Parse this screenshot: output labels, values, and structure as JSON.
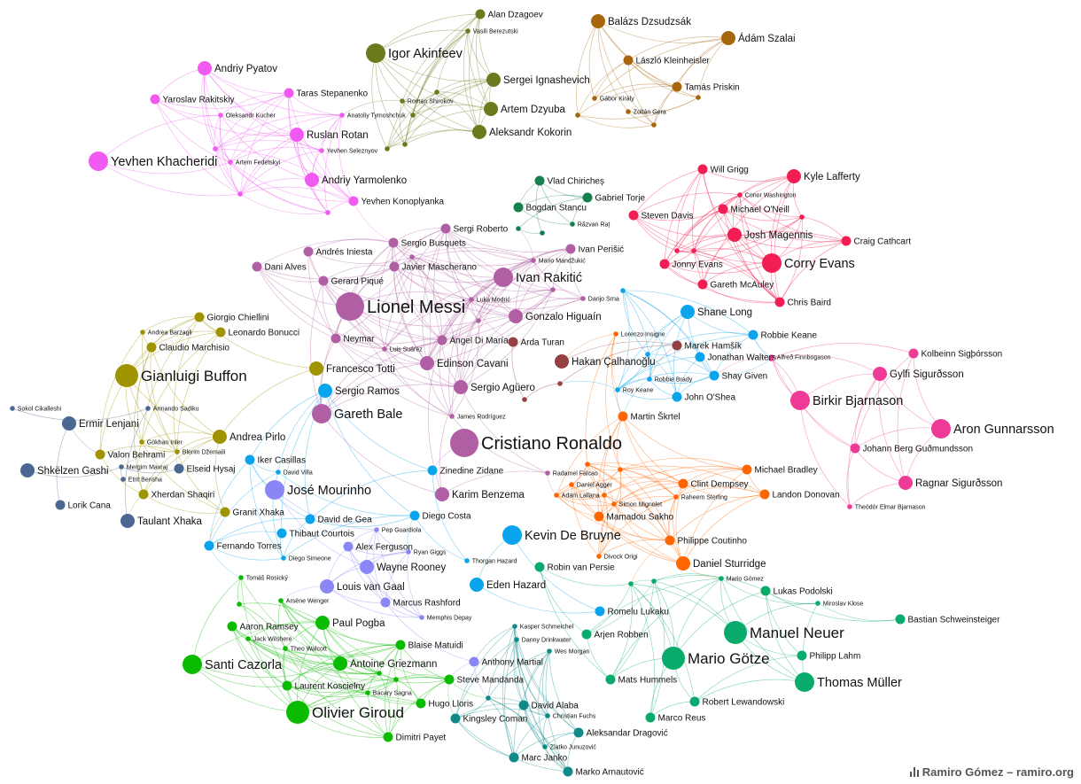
{
  "colors": {
    "ukraine": "#f05af0",
    "russia": "#6b7a1c",
    "hungary": "#a8660c",
    "romania": "#157f4e",
    "nireland": "#f21d52",
    "spain": "#b15fa5",
    "turkey": "#954041",
    "ireland": "#0aa4ec",
    "iceland": "#ef3b96",
    "italy": "#a09300",
    "albania": "#4a6891",
    "swiss": "#4a6891",
    "england": "#ff6600",
    "portugal": "#b15fa5",
    "belgium": "#0aa4ec",
    "manager": "#8a86f5",
    "france": "#0bbb00",
    "germany": "#08ab6b",
    "austria": "#0f8a89"
  },
  "credit": "Ramiro Gómez – ramiro.org",
  "nodes": [
    {
      "label": "Alan Dzagoev",
      "g": "russia",
      "s": 1
    },
    {
      "label": "Vasili Berezutski",
      "g": "russia",
      "s": 0
    },
    {
      "label": "Igor Akinfeev",
      "g": "russia",
      "s": 3
    },
    {
      "label": "Sergei Ignashevich",
      "g": "russia",
      "s": 2
    },
    {
      "label": "Roman Shirokov",
      "g": "russia",
      "s": 0
    },
    {
      "label": "Artem Dzyuba",
      "g": "russia",
      "s": 2
    },
    {
      "label": "Aleksandr Kokorin",
      "g": "russia",
      "s": 2
    },
    {
      "label": "Balázs Dzsudzsák",
      "g": "hungary",
      "s": 2
    },
    {
      "label": "Ádám Szalai",
      "g": "hungary",
      "s": 2
    },
    {
      "label": "László Kleinheisler",
      "g": "hungary",
      "s": 1
    },
    {
      "label": "Tamás Priskin",
      "g": "hungary",
      "s": 1
    },
    {
      "label": "Gábor Király",
      "g": "hungary",
      "s": 0
    },
    {
      "label": "Zoltán Gera",
      "g": "hungary",
      "s": 0
    },
    {
      "label": "Andriy Pyatov",
      "g": "ukraine",
      "s": 2
    },
    {
      "label": "Yaroslav Rakitskiy",
      "g": "ukraine",
      "s": 1
    },
    {
      "label": "Taras Stepanenko",
      "g": "ukraine",
      "s": 1
    },
    {
      "label": "Oleksandr Kucher",
      "g": "ukraine",
      "s": 0
    },
    {
      "label": "Anatoliy Tymoshchuk",
      "g": "ukraine",
      "s": 0
    },
    {
      "label": "Ruslan Rotan",
      "g": "ukraine",
      "s": 2
    },
    {
      "label": "Yevhen Seleznyov",
      "g": "ukraine",
      "s": 0
    },
    {
      "label": "Yevhen Khacheridi",
      "g": "ukraine",
      "s": 3
    },
    {
      "label": "Artem Fedetskyi",
      "g": "ukraine",
      "s": 0
    },
    {
      "label": "Andriy Yarmolenko",
      "g": "ukraine",
      "s": 2
    },
    {
      "label": "Yevhen Konoplyanka",
      "g": "ukraine",
      "s": 1
    },
    {
      "label": "Vlad Chiricheș",
      "g": "romania",
      "s": 1
    },
    {
      "label": "Gabriel Torje",
      "g": "romania",
      "s": 1
    },
    {
      "label": "Bogdan Stancu",
      "g": "romania",
      "s": 1
    },
    {
      "label": "Răzvan Raț",
      "g": "romania",
      "s": 0
    },
    {
      "label": "Will Grigg",
      "g": "nireland",
      "s": 1
    },
    {
      "label": "Kyle Lafferty",
      "g": "nireland",
      "s": 2
    },
    {
      "label": "Conor Washington",
      "g": "nireland",
      "s": 0
    },
    {
      "label": "Steven Davis",
      "g": "nireland",
      "s": 1
    },
    {
      "label": "Michael O'Neill",
      "g": "nireland",
      "s": 1
    },
    {
      "label": "Josh Magennis",
      "g": "nireland",
      "s": 2
    },
    {
      "label": "Craig Cathcart",
      "g": "nireland",
      "s": 1
    },
    {
      "label": "Jonny Evans",
      "g": "nireland",
      "s": 1
    },
    {
      "label": "Corry Evans",
      "g": "nireland",
      "s": 3
    },
    {
      "label": "Gareth McAuley",
      "g": "nireland",
      "s": 1
    },
    {
      "label": "Chris Baird",
      "g": "nireland",
      "s": 1
    },
    {
      "label": "Sergi Roberto",
      "g": "spain",
      "s": 1
    },
    {
      "label": "Sergio Busquets",
      "g": "spain",
      "s": 1
    },
    {
      "label": "Andrés Iniesta",
      "g": "spain",
      "s": 1
    },
    {
      "label": "Ivan Perišić",
      "g": "spain",
      "s": 1
    },
    {
      "label": "Mario Mandžukić",
      "g": "spain",
      "s": 0
    },
    {
      "label": "Dani Alves",
      "g": "spain",
      "s": 1
    },
    {
      "label": "Javier Mascherano",
      "g": "spain",
      "s": 1
    },
    {
      "label": "Ivan Rakitić",
      "g": "spain",
      "s": 3
    },
    {
      "label": "Gerard Piqué",
      "g": "spain",
      "s": 1
    },
    {
      "label": "Luka Modrić",
      "g": "spain",
      "s": 0
    },
    {
      "label": "Darijo Srna",
      "g": "spain",
      "s": 0
    },
    {
      "label": "Lionel Messi",
      "g": "spain",
      "s": 5
    },
    {
      "label": "Gonzalo Higuaín",
      "g": "spain",
      "s": 2
    },
    {
      "label": "Shane Long",
      "g": "ireland",
      "s": 2
    },
    {
      "label": "Giorgio Chiellini",
      "g": "italy",
      "s": 1
    },
    {
      "label": "Andrea Barzagli",
      "g": "italy",
      "s": 0
    },
    {
      "label": "Leonardo Bonucci",
      "g": "italy",
      "s": 1
    },
    {
      "label": "Neymar",
      "g": "spain",
      "s": 1
    },
    {
      "label": "Lorenzo Insigne",
      "g": "england",
      "s": 0
    },
    {
      "label": "Robbie Keane",
      "g": "ireland",
      "s": 1
    },
    {
      "label": "Claudio Marchisio",
      "g": "italy",
      "s": 1
    },
    {
      "label": "Luis Suárez",
      "g": "spain",
      "s": 0
    },
    {
      "label": "Ángel Di María",
      "g": "spain",
      "s": 1
    },
    {
      "label": "Arda Turan",
      "g": "turkey",
      "s": 1
    },
    {
      "label": "Marek Hamšík",
      "g": "turkey",
      "s": 1
    },
    {
      "label": "Kolbeinn Sigþórsson",
      "g": "iceland",
      "s": 1
    },
    {
      "label": "Jonathan Walters",
      "g": "ireland",
      "s": 1
    },
    {
      "label": "Alfreð Finnbogason",
      "g": "iceland",
      "s": 0
    },
    {
      "label": "Francesco Totti",
      "g": "italy",
      "s": 2
    },
    {
      "label": "Edinson Cavani",
      "g": "spain",
      "s": 2
    },
    {
      "label": "Hakan Çalhanoğlu",
      "g": "turkey",
      "s": 2
    },
    {
      "label": "Gianluigi Buffon",
      "g": "italy",
      "s": 4
    },
    {
      "label": "Gylfi Sigurðsson",
      "g": "iceland",
      "s": 2
    },
    {
      "label": "Robbie Brady",
      "g": "ireland",
      "s": 0
    },
    {
      "label": "Shay Given",
      "g": "ireland",
      "s": 1
    },
    {
      "label": "Sergio Ramos",
      "g": "ireland",
      "s": 2
    },
    {
      "label": "Sergio Agüero",
      "g": "spain",
      "s": 2
    },
    {
      "label": "Roy Keane",
      "g": "ireland",
      "s": 0
    },
    {
      "label": "John O'Shea",
      "g": "ireland",
      "s": 1
    },
    {
      "label": "Birkir Bjarnason",
      "g": "iceland",
      "s": 3
    },
    {
      "label": "Sokol Cikalleshi",
      "g": "albania",
      "s": 0
    },
    {
      "label": "Armando Sadiku",
      "g": "albania",
      "s": 0
    },
    {
      "label": "Gareth Bale",
      "g": "spain",
      "s": 3
    },
    {
      "label": "Ermir Lenjani",
      "g": "albania",
      "s": 2
    },
    {
      "label": "James Rodríguez",
      "g": "spain",
      "s": 0
    },
    {
      "label": "Martin Škrtel",
      "g": "england",
      "s": 1
    },
    {
      "label": "Aron Gunnarsson",
      "g": "iceland",
      "s": 3
    },
    {
      "label": "Andrea Pirlo",
      "g": "italy",
      "s": 2
    },
    {
      "label": "Cristiano Ronaldo",
      "g": "portugal",
      "s": 5
    },
    {
      "label": "Gökhan Inler",
      "g": "italy",
      "s": 0
    },
    {
      "label": "Blerim Džemaili",
      "g": "italy",
      "s": 0
    },
    {
      "label": "Johann Berg Guðmundsson",
      "g": "iceland",
      "s": 1
    },
    {
      "label": "Valon Behrami",
      "g": "italy",
      "s": 1
    },
    {
      "label": "Iker Casillas",
      "g": "ireland",
      "s": 1
    },
    {
      "label": "Michael Bradley",
      "g": "england",
      "s": 1
    },
    {
      "label": "Shkëlzen Gashi",
      "g": "swiss",
      "s": 2
    },
    {
      "label": "Mergim Mavraj",
      "g": "swiss",
      "s": 0
    },
    {
      "label": "Elseid Hysaj",
      "g": "swiss",
      "s": 1
    },
    {
      "label": "David Villa",
      "g": "ireland",
      "s": 0
    },
    {
      "label": "Zinedine Zidane",
      "g": "ireland",
      "s": 1
    },
    {
      "label": "Radamel Falcao",
      "g": "spain",
      "s": 0
    },
    {
      "label": "Etrit Berisha",
      "g": "swiss",
      "s": 0
    },
    {
      "label": "Daniel Agger",
      "g": "england",
      "s": 0
    },
    {
      "label": "Clint Dempsey",
      "g": "england",
      "s": 1
    },
    {
      "label": "Ragnar Sigurðsson",
      "g": "iceland",
      "s": 2
    },
    {
      "label": "José Mourinho",
      "g": "manager",
      "s": 3
    },
    {
      "label": "Karim Benzema",
      "g": "spain",
      "s": 2
    },
    {
      "label": "Xherdan Shaqiri",
      "g": "italy",
      "s": 1
    },
    {
      "label": "Adam Lallana",
      "g": "england",
      "s": 0
    },
    {
      "label": "Landon Donovan",
      "g": "england",
      "s": 1
    },
    {
      "label": "Lorik Cana",
      "g": "albania",
      "s": 1
    },
    {
      "label": "Simon Mignolet",
      "g": "england",
      "s": 0
    },
    {
      "label": "Raheem Sterling",
      "g": "england",
      "s": 0
    },
    {
      "label": "Theódór Elmar Bjarnason",
      "g": "iceland",
      "s": 0
    },
    {
      "label": "Taulant Xhaka",
      "g": "albania",
      "s": 2
    },
    {
      "label": "Granit Xhaka",
      "g": "italy",
      "s": 1
    },
    {
      "label": "David de Gea",
      "g": "ireland",
      "s": 1
    },
    {
      "label": "Diego Costa",
      "g": "ireland",
      "s": 1
    },
    {
      "label": "Mamadou Sakho",
      "g": "england",
      "s": 1
    },
    {
      "label": "Pep Guardiola",
      "g": "manager",
      "s": 0
    },
    {
      "label": "Thibaut Courtois",
      "g": "ireland",
      "s": 1
    },
    {
      "label": "Kevin De Bruyne",
      "g": "belgium",
      "s": 3
    },
    {
      "label": "Fernando Torres",
      "g": "ireland",
      "s": 1
    },
    {
      "label": "Alex Ferguson",
      "g": "manager",
      "s": 1
    },
    {
      "label": "Philippe Coutinho",
      "g": "england",
      "s": 1
    },
    {
      "label": "Ryan Giggs",
      "g": "manager",
      "s": 0
    },
    {
      "label": "Divock Origi",
      "g": "england",
      "s": 0
    },
    {
      "label": "Diego Simeone",
      "g": "ireland",
      "s": 0
    },
    {
      "label": "Thorgan Hazard",
      "g": "ireland",
      "s": 0
    },
    {
      "label": "Wayne Rooney",
      "g": "manager",
      "s": 2
    },
    {
      "label": "Robin van Persie",
      "g": "germany",
      "s": 1
    },
    {
      "label": "Daniel Sturridge",
      "g": "england",
      "s": 2
    },
    {
      "label": "Tomáš Rosický",
      "g": "france",
      "s": 0
    },
    {
      "label": "Mario Gómez",
      "g": "germany",
      "s": 0
    },
    {
      "label": "Louis van Gaal",
      "g": "manager",
      "s": 2
    },
    {
      "label": "Eden Hazard",
      "g": "belgium",
      "s": 2
    },
    {
      "label": "Lukas Podolski",
      "g": "germany",
      "s": 1
    },
    {
      "label": "Arsène Wenger",
      "g": "france",
      "s": 0
    },
    {
      "label": "Marcus Rashford",
      "g": "manager",
      "s": 1
    },
    {
      "label": "Miroslav Klose",
      "g": "germany",
      "s": 0
    },
    {
      "label": "Romelu Lukaku",
      "g": "belgium",
      "s": 1
    },
    {
      "label": "Memphis Depay",
      "g": "manager",
      "s": 0
    },
    {
      "label": "Bastian Schweinsteiger",
      "g": "germany",
      "s": 1
    },
    {
      "label": "Aaron Ramsey",
      "g": "france",
      "s": 1
    },
    {
      "label": "Paul Pogba",
      "g": "france",
      "s": 2
    },
    {
      "label": "Kasper Schmeichel",
      "g": "austria",
      "s": 0
    },
    {
      "label": "Jack Wilshere",
      "g": "france",
      "s": 0
    },
    {
      "label": "Danny Drinkwater",
      "g": "austria",
      "s": 0
    },
    {
      "label": "Arjen Robben",
      "g": "germany",
      "s": 1
    },
    {
      "label": "Manuel Neuer",
      "g": "germany",
      "s": 4
    },
    {
      "label": "Theo Walcott",
      "g": "france",
      "s": 0
    },
    {
      "label": "Blaise Matuidi",
      "g": "france",
      "s": 1
    },
    {
      "label": "Wes Morgan",
      "g": "austria",
      "s": 0
    },
    {
      "label": "Santi Cazorla",
      "g": "france",
      "s": 3
    },
    {
      "label": "Antoine Griezmann",
      "g": "france",
      "s": 2
    },
    {
      "label": "Anthony Martial",
      "g": "manager",
      "s": 1
    },
    {
      "label": "Mario Götze",
      "g": "germany",
      "s": 4
    },
    {
      "label": "Philipp Lahm",
      "g": "germany",
      "s": 1
    },
    {
      "label": "Steve Mandanda",
      "g": "france",
      "s": 1
    },
    {
      "label": "Laurent Koscielny",
      "g": "france",
      "s": 1
    },
    {
      "label": "Mats Hummels",
      "g": "germany",
      "s": 1
    },
    {
      "label": "Thomas Müller",
      "g": "germany",
      "s": 3
    },
    {
      "label": "Bacary Sagna",
      "g": "france",
      "s": 0
    },
    {
      "label": "Hugo Lloris",
      "g": "france",
      "s": 1
    },
    {
      "label": "David Alaba",
      "g": "austria",
      "s": 1
    },
    {
      "label": "Robert Lewandowski",
      "g": "germany",
      "s": 1
    },
    {
      "label": "Olivier Giroud",
      "g": "france",
      "s": 4
    },
    {
      "label": "Christian Fuchs",
      "g": "austria",
      "s": 0
    },
    {
      "label": "Marco Reus",
      "g": "germany",
      "s": 1
    },
    {
      "label": "Kingsley Coman",
      "g": "austria",
      "s": 1
    },
    {
      "label": "Aleksandar Dragović",
      "g": "austria",
      "s": 1
    },
    {
      "label": "Dimitri Payet",
      "g": "france",
      "s": 1
    },
    {
      "label": "Zlatko Junuzović",
      "g": "austria",
      "s": 0
    },
    {
      "label": "Marc Janko",
      "g": "austria",
      "s": 1
    },
    {
      "label": "Marko Arnautović",
      "g": "austria",
      "s": 1
    }
  ],
  "extra": [
    {
      "g": "russia"
    },
    {
      "g": "russia"
    },
    {
      "g": "russia"
    },
    {
      "g": "russia"
    },
    {
      "g": "hungary"
    },
    {
      "g": "hungary"
    },
    {
      "g": "hungary"
    },
    {
      "g": "ukraine"
    },
    {
      "g": "ukraine"
    },
    {
      "g": "ukraine"
    },
    {
      "g": "romania"
    },
    {
      "g": "romania"
    },
    {
      "g": "nireland"
    },
    {
      "g": "nireland"
    },
    {
      "g": "nireland"
    },
    {
      "g": "spain"
    },
    {
      "g": "spain"
    },
    {
      "g": "spain"
    },
    {
      "g": "ireland"
    },
    {
      "g": "ireland"
    },
    {
      "g": "england"
    },
    {
      "g": "england"
    },
    {
      "g": "england"
    },
    {
      "g": "france"
    },
    {
      "g": "france"
    },
    {
      "g": "france"
    },
    {
      "g": "germany"
    },
    {
      "g": "germany"
    },
    {
      "g": "austria"
    },
    {
      "g": "turkey"
    },
    {
      "g": "turkey"
    },
    {
      "g": "iceland"
    }
  ]
}
